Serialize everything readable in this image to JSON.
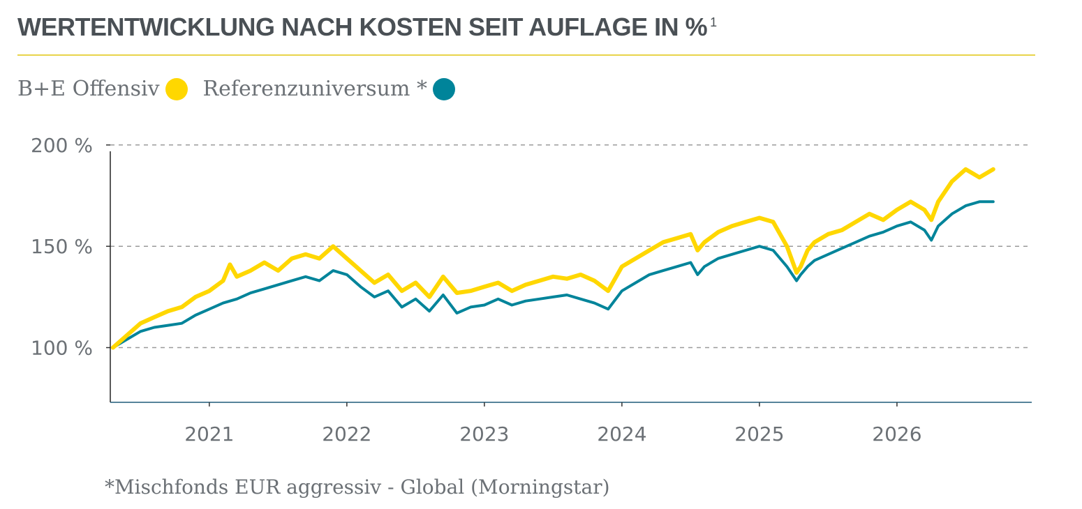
{
  "header": {
    "title": "WERTENTWICKLUNG NACH KOSTEN SEIT AUFLAGE IN %",
    "footnote_marker": "1"
  },
  "legend": {
    "items": [
      {
        "label": "B+E Offensiv",
        "color": "#ffd700"
      },
      {
        "label": "Referenzuniversum *",
        "color": "#00849a"
      }
    ]
  },
  "footnote": "*Mischfonds EUR aggressiv - Global (Morningstar)",
  "chart_data": {
    "type": "line",
    "title": "WERTENTWICKLUNG NACH KOSTEN SEIT AUFLAGE IN %",
    "xlabel": "",
    "ylabel": "",
    "ylim": [
      73,
      201
    ],
    "xlim": [
      2020.28,
      2026.98
    ],
    "grid": true,
    "legend_position": "top-left",
    "y_ticks": [
      {
        "value": 100,
        "label": "100 %"
      },
      {
        "value": 150,
        "label": "150 %"
      },
      {
        "value": 200,
        "label": "200 %"
      }
    ],
    "x_ticks": [
      {
        "value": 2021,
        "label": "2021"
      },
      {
        "value": 2022,
        "label": "2022"
      },
      {
        "value": 2023,
        "label": "2023"
      },
      {
        "value": 2024,
        "label": "2024"
      },
      {
        "value": 2025,
        "label": "2025"
      },
      {
        "value": 2026,
        "label": "2026"
      }
    ],
    "series": [
      {
        "name": "B+E Offensiv",
        "color": "#ffd700",
        "x": [
          2020.3,
          2020.4,
          2020.5,
          2020.6,
          2020.7,
          2020.8,
          2020.9,
          2021.0,
          2021.1,
          2021.15,
          2021.2,
          2021.3,
          2021.4,
          2021.5,
          2021.6,
          2021.7,
          2021.8,
          2021.9,
          2022.0,
          2022.1,
          2022.2,
          2022.3,
          2022.4,
          2022.5,
          2022.6,
          2022.7,
          2022.8,
          2022.9,
          2023.0,
          2023.1,
          2023.2,
          2023.3,
          2023.4,
          2023.5,
          2023.6,
          2023.7,
          2023.8,
          2023.9,
          2024.0,
          2024.1,
          2024.2,
          2024.3,
          2024.4,
          2024.5,
          2024.55,
          2024.6,
          2024.7,
          2024.8,
          2024.9,
          2025.0,
          2025.1,
          2025.2,
          2025.27,
          2025.3,
          2025.35,
          2025.4,
          2025.5,
          2025.6,
          2025.7,
          2025.8,
          2025.9,
          2026.0,
          2026.1,
          2026.2,
          2026.25,
          2026.3,
          2026.4,
          2026.5,
          2026.6,
          2026.7
        ],
        "values": [
          100,
          106,
          112,
          115,
          118,
          120,
          125,
          128,
          133,
          141,
          135,
          138,
          142,
          138,
          144,
          146,
          144,
          150,
          144,
          138,
          132,
          136,
          128,
          132,
          125,
          135,
          127,
          128,
          130,
          132,
          128,
          131,
          133,
          135,
          134,
          136,
          133,
          128,
          140,
          144,
          148,
          152,
          154,
          156,
          148,
          152,
          157,
          160,
          162,
          164,
          162,
          150,
          137,
          140,
          148,
          152,
          156,
          158,
          162,
          166,
          163,
          168,
          172,
          168,
          163,
          172,
          182,
          188,
          184,
          188
        ]
      },
      {
        "name": "Referenzuniversum *",
        "color": "#00849a",
        "x": [
          2020.3,
          2020.4,
          2020.5,
          2020.6,
          2020.7,
          2020.8,
          2020.9,
          2021.0,
          2021.1,
          2021.2,
          2021.3,
          2021.4,
          2021.5,
          2021.6,
          2021.7,
          2021.8,
          2021.9,
          2022.0,
          2022.1,
          2022.2,
          2022.3,
          2022.4,
          2022.5,
          2022.6,
          2022.7,
          2022.8,
          2022.9,
          2023.0,
          2023.1,
          2023.2,
          2023.3,
          2023.4,
          2023.5,
          2023.6,
          2023.7,
          2023.8,
          2023.9,
          2024.0,
          2024.1,
          2024.2,
          2024.3,
          2024.4,
          2024.5,
          2024.55,
          2024.6,
          2024.7,
          2024.8,
          2024.9,
          2025.0,
          2025.1,
          2025.2,
          2025.27,
          2025.3,
          2025.35,
          2025.4,
          2025.5,
          2025.6,
          2025.7,
          2025.8,
          2025.9,
          2026.0,
          2026.1,
          2026.2,
          2026.25,
          2026.3,
          2026.4,
          2026.5,
          2026.6,
          2026.7
        ],
        "values": [
          100,
          104,
          108,
          110,
          111,
          112,
          116,
          119,
          122,
          124,
          127,
          129,
          131,
          133,
          135,
          133,
          138,
          136,
          130,
          125,
          128,
          120,
          124,
          118,
          126,
          117,
          120,
          121,
          124,
          121,
          123,
          124,
          125,
          126,
          124,
          122,
          119,
          128,
          132,
          136,
          138,
          140,
          142,
          136,
          140,
          144,
          146,
          148,
          150,
          148,
          140,
          133,
          136,
          140,
          143,
          146,
          149,
          152,
          155,
          157,
          160,
          162,
          158,
          153,
          160,
          166,
          170,
          172,
          172
        ]
      }
    ]
  }
}
